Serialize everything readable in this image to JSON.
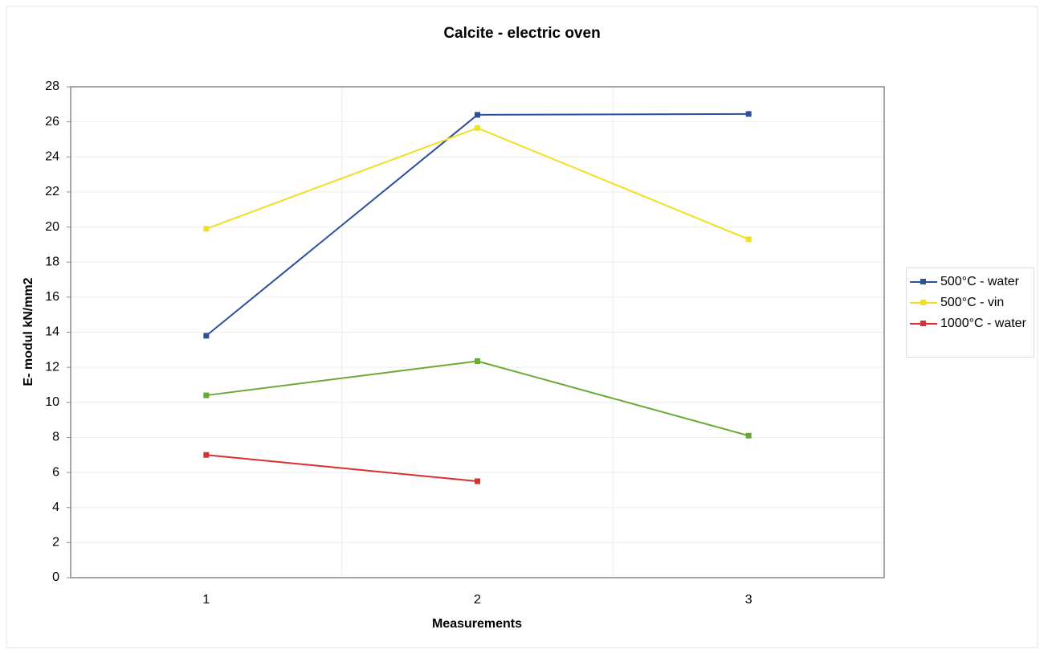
{
  "chart_data": {
    "type": "line",
    "title": "Calcite - electric oven",
    "x_label": "Measurements",
    "y_label": "E- modul kN/mm2",
    "categories": [
      "1",
      "2",
      "3"
    ],
    "series": [
      {
        "name": "500°C - water",
        "color": "#2e4f9e",
        "values": [
          13.8,
          26.4,
          26.45
        ]
      },
      {
        "name": "500°C - vin",
        "color": "#f0e020",
        "values": [
          19.9,
          25.65,
          19.3
        ]
      },
      {
        "name": "1000°C - water",
        "color": "#d83030",
        "values": [
          7.0,
          5.5,
          null
        ]
      },
      {
        "color": "#6aaa30",
        "values": [
          10.4,
          12.35,
          8.1
        ]
      }
    ],
    "ylim": [
      0,
      28
    ],
    "yticks": [
      0,
      2,
      4,
      6,
      8,
      10,
      12,
      14,
      16,
      18,
      20,
      22,
      24,
      26,
      28
    ],
    "grid": true,
    "legend": "right"
  }
}
